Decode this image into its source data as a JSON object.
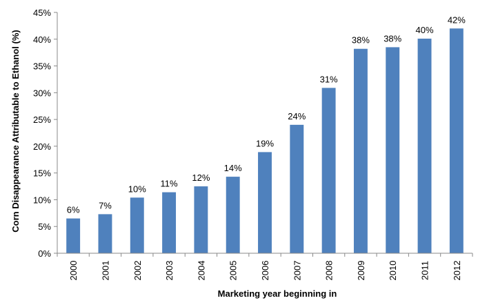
{
  "chart_data": {
    "type": "bar",
    "categories": [
      "2000",
      "2001",
      "2002",
      "2003",
      "2004",
      "2005",
      "2006",
      "2007",
      "2008",
      "2009",
      "2010",
      "2011",
      "2012"
    ],
    "values": [
      6.5,
      7.3,
      10.4,
      11.4,
      12.5,
      14.3,
      18.9,
      24.0,
      30.9,
      38.2,
      38.5,
      40.1,
      42.0
    ],
    "data_labels": [
      "6%",
      "7%",
      "10%",
      "11%",
      "12%",
      "14%",
      "19%",
      "24%",
      "31%",
      "38%",
      "38%",
      "40%",
      "42%"
    ],
    "ylim": [
      0,
      45
    ],
    "yticks": [
      0,
      5,
      10,
      15,
      20,
      25,
      30,
      35,
      40,
      45
    ],
    "ytick_labels": [
      "0%",
      "5%",
      "10%",
      "15%",
      "20%",
      "25%",
      "30%",
      "35%",
      "40%",
      "45%"
    ],
    "xlabel": "Marketing year beginning in",
    "ylabel": "Corn Disappearance  Attributable to Ethanol (%)",
    "title": "",
    "grid": false,
    "legend": "none",
    "bar_color": "#4F81BD"
  }
}
